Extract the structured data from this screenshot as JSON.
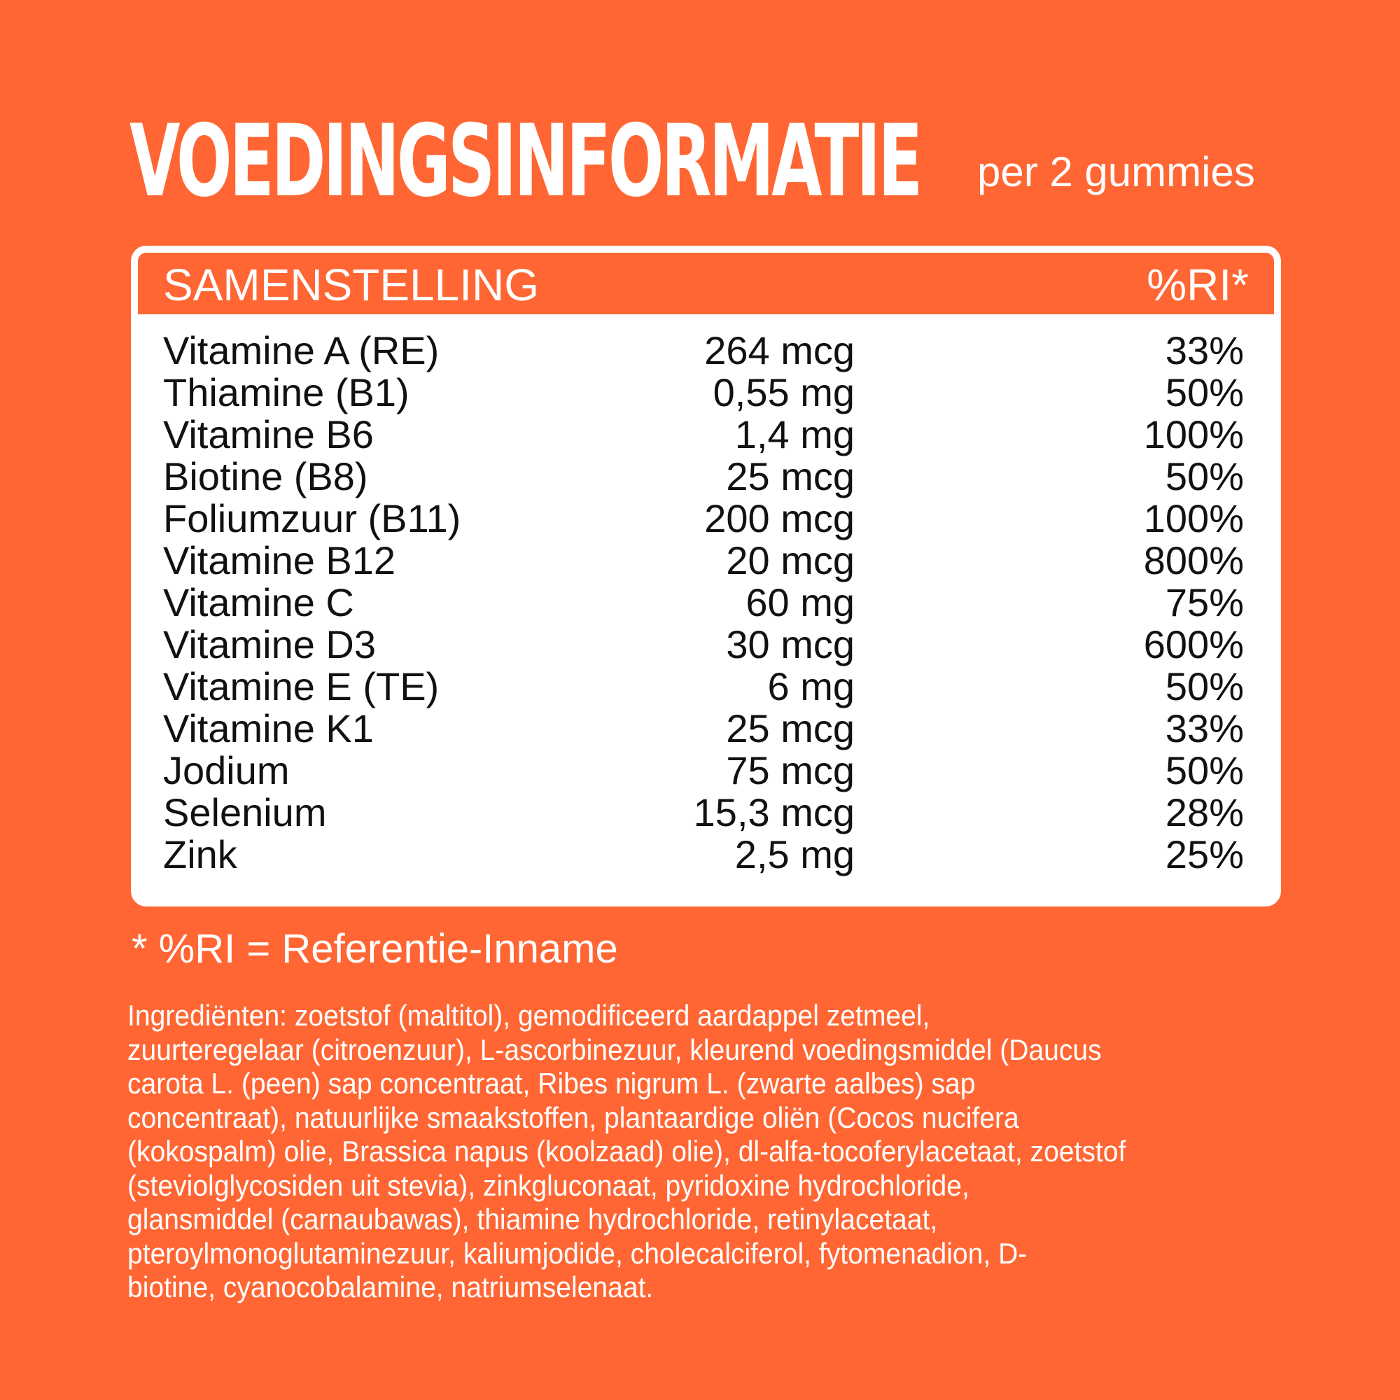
{
  "header": {
    "title": "VOEDINGSINFORMATIE",
    "subtitle": "per 2 gummies"
  },
  "table": {
    "col_name": "SAMENSTELLING",
    "col_ri": "%RI*",
    "rows": [
      {
        "name": "Vitamine A (RE)",
        "amount": "264 mcg",
        "ri": "33%"
      },
      {
        "name": "Thiamine (B1)",
        "amount": "0,55 mg",
        "ri": "50%"
      },
      {
        "name": "Vitamine B6",
        "amount": "1,4 mg",
        "ri": "100%"
      },
      {
        "name": "Biotine (B8)",
        "amount": "25 mcg",
        "ri": "50%"
      },
      {
        "name": "Foliumzuur (B11)",
        "amount": "200 mcg",
        "ri": "100%"
      },
      {
        "name": "Vitamine B12",
        "amount": "20 mcg",
        "ri": "800%"
      },
      {
        "name": "Vitamine C",
        "amount": "60 mg",
        "ri": "75%"
      },
      {
        "name": "Vitamine D3",
        "amount": "30 mcg",
        "ri": "600%"
      },
      {
        "name": "Vitamine E (TE)",
        "amount": "6 mg",
        "ri": "50%"
      },
      {
        "name": "Vitamine K1",
        "amount": "25 mcg",
        "ri": "33%"
      },
      {
        "name": "Jodium",
        "amount": "75 mcg",
        "ri": "50%"
      },
      {
        "name": "Selenium",
        "amount": "15,3 mcg",
        "ri": "28%"
      },
      {
        "name": "Zink",
        "amount": "2,5 mg",
        "ri": "25%"
      }
    ]
  },
  "footnote": "* %RI = Referentie-Inname",
  "ingredients": [
    "Ingrediënten: zoetstof (maltitol), gemodificeerd aardappel zetmeel,",
    "zuurteregelaar (citroenzuur), L-ascorbinezuur, kleurend voedingsmiddel (Daucus",
    "carota L. (peen) sap concentraat, Ribes nigrum L. (zwarte aalbes) sap",
    "concentraat), natuurlijke smaakstoffen, plantaardige oliën (Cocos nucifera",
    "(kokospalm) olie, Brassica napus (koolzaad) olie), dl-alfa-tocoferylacetaat, zoetstof",
    "(steviolglycosiden uit stevia), zinkgluconaat, pyridoxine hydrochloride,",
    "glansmiddel (carnaubawas), thiamine hydrochloride, retinylacetaat,",
    "pteroylmonoglutaminezuur, kaliumjodide, cholecalciferol, fytomenadion, D-",
    "biotine, cyanocobalamine, natriumselenaat."
  ],
  "colors": {
    "background": "#FF6633",
    "card": "#FFFFFF",
    "text_dark": "#111111"
  }
}
